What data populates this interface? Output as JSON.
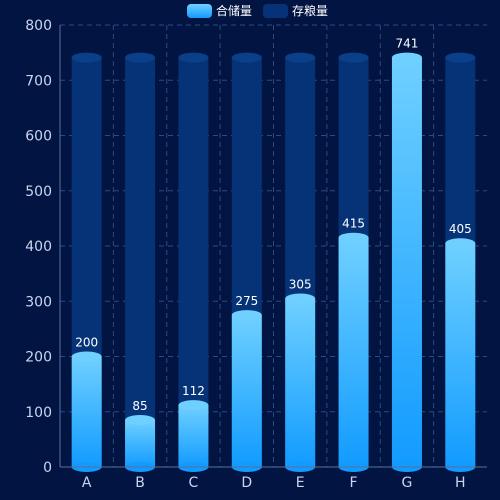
{
  "chart_data": {
    "type": "bar",
    "categories": [
      "A",
      "B",
      "C",
      "D",
      "E",
      "F",
      "G",
      "H"
    ],
    "series": [
      {
        "name": "合储量",
        "values": [
          200,
          85,
          112,
          275,
          305,
          415,
          741,
          405
        ]
      },
      {
        "name": "存粮量",
        "values": [
          741,
          741,
          741,
          741,
          741,
          741,
          741,
          741
        ]
      }
    ],
    "ylim": [
      0,
      800
    ],
    "yticks": [
      0,
      100,
      200,
      300,
      400,
      500,
      600,
      700,
      800
    ],
    "grid": true,
    "legend_position": "top-center",
    "colors": {
      "background": "#021442",
      "front_top": "#6fd0ff",
      "front_bottom": "#129bff",
      "back": "#063377",
      "back_cap": "#0a3f8a",
      "axis": "#5a6f9a",
      "grid": "#2b4a86"
    }
  }
}
